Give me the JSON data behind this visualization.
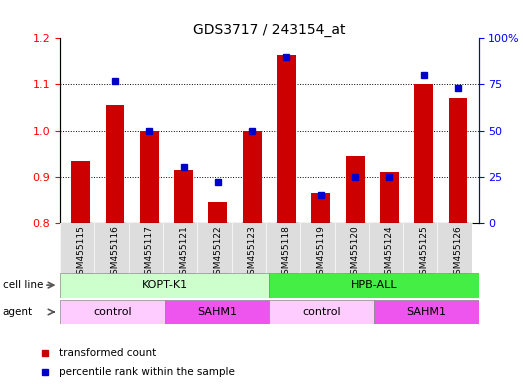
{
  "title": "GDS3717 / 243154_at",
  "samples": [
    "GSM455115",
    "GSM455116",
    "GSM455117",
    "GSM455121",
    "GSM455122",
    "GSM455123",
    "GSM455118",
    "GSM455119",
    "GSM455120",
    "GSM455124",
    "GSM455125",
    "GSM455126"
  ],
  "red_values": [
    0.935,
    1.055,
    1.0,
    0.915,
    0.845,
    1.0,
    1.165,
    0.865,
    0.945,
    0.91,
    1.1,
    1.07
  ],
  "blue_percentile": [
    null,
    77,
    50,
    30,
    22,
    50,
    90,
    15,
    25,
    25,
    80,
    73
  ],
  "red_bar_color": "#cc0000",
  "blue_marker_color": "#0000cc",
  "ylim_left": [
    0.8,
    1.2
  ],
  "ylim_right": [
    0,
    100
  ],
  "yticks_left": [
    0.8,
    0.9,
    1.0,
    1.1,
    1.2
  ],
  "yticks_right": [
    0,
    25,
    50,
    75,
    100
  ],
  "cell_line_groups": [
    {
      "label": "KOPT-K1",
      "start": 0,
      "end": 6,
      "color": "#ccffcc"
    },
    {
      "label": "HPB-ALL",
      "start": 6,
      "end": 12,
      "color": "#44ee44"
    }
  ],
  "agent_groups": [
    {
      "label": "control",
      "start": 0,
      "end": 3,
      "color": "#ffccff"
    },
    {
      "label": "SAHM1",
      "start": 3,
      "end": 6,
      "color": "#ee55ee"
    },
    {
      "label": "control",
      "start": 6,
      "end": 9,
      "color": "#ffccff"
    },
    {
      "label": "SAHM1",
      "start": 9,
      "end": 12,
      "color": "#ee55ee"
    }
  ],
  "legend_red": "transformed count",
  "legend_blue": "percentile rank within the sample",
  "red_legend_color": "#cc0000",
  "blue_legend_color": "#0000cc",
  "xtick_bg": "#dddddd",
  "bar_width": 0.55
}
